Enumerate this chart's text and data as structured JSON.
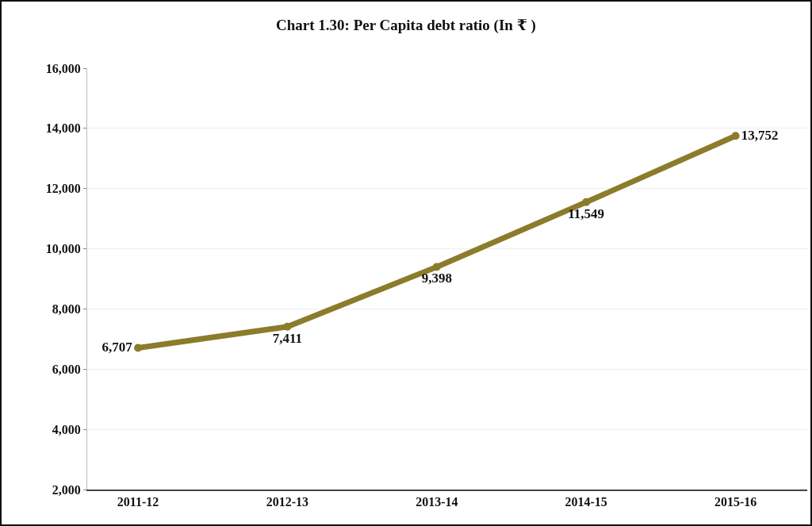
{
  "chart_data": {
    "type": "line",
    "title": "Chart 1.30: Per Capita debt ratio (In ₹ )",
    "categories": [
      "2011-12",
      "2012-13",
      "2013-14",
      "2014-15",
      "2015-16"
    ],
    "series": [
      {
        "color": "#8c7b2b",
        "values": [
          6707,
          7411,
          9398,
          11549,
          13752
        ],
        "value_labels": [
          "6,707",
          "7,411",
          "9,398",
          "11,549",
          "13,752"
        ]
      }
    ],
    "ylim": [
      2000,
      16000
    ],
    "yticks": [
      {
        "value": 2000,
        "label": "2,000"
      },
      {
        "value": 4000,
        "label": "4,000"
      },
      {
        "value": 6000,
        "label": "6,000"
      },
      {
        "value": 8000,
        "label": "8,000"
      },
      {
        "value": 10000,
        "label": "10,000"
      },
      {
        "value": 12000,
        "label": "12,000"
      },
      {
        "value": 14000,
        "label": "14,000"
      },
      {
        "value": 16000,
        "label": "16,000"
      }
    ],
    "grid": "y",
    "marker": "circle",
    "line_style": "solid"
  }
}
